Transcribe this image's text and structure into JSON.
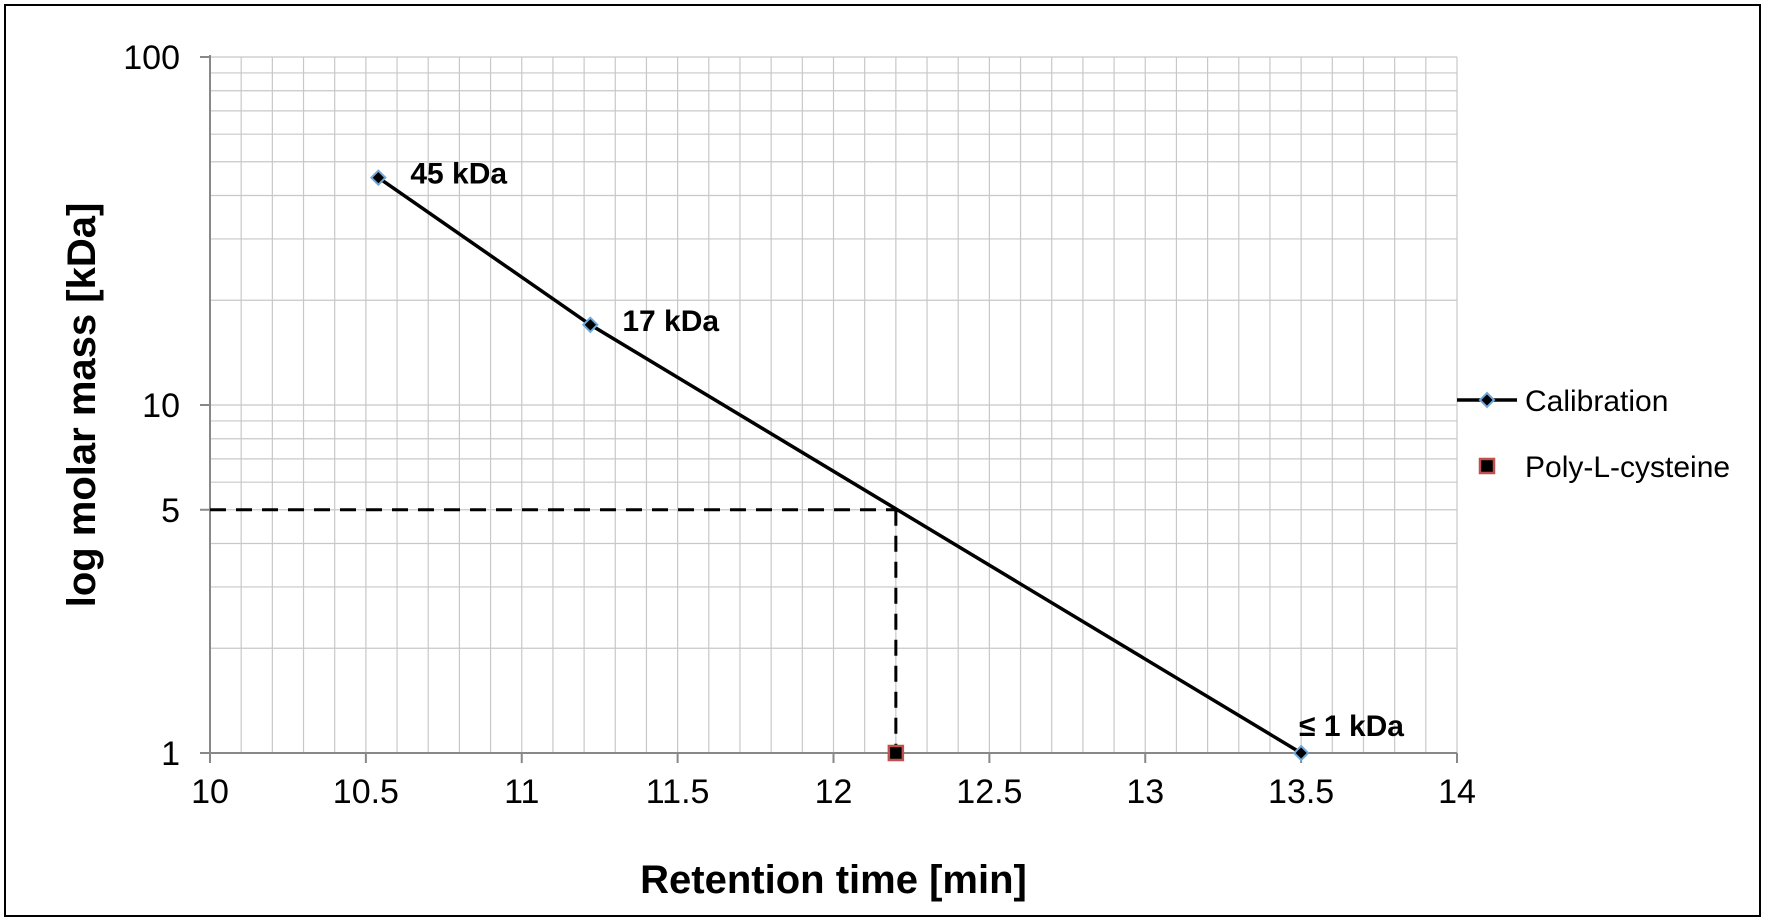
{
  "chart_data": {
    "type": "scatter",
    "xlabel": "Retention time [min]",
    "ylabel": "log molar mass [kDa]",
    "xlim": [
      10,
      14
    ],
    "ylim": [
      1,
      100
    ],
    "yscale": "log",
    "grid": true,
    "x_ticks": [
      10,
      10.5,
      11,
      11.5,
      12,
      12.5,
      13,
      13.5,
      14
    ],
    "x_tick_labels": [
      "10",
      "10.5",
      "11",
      "11.5",
      "12",
      "12.5",
      "13",
      "13.5",
      "14"
    ],
    "y_ticks": [
      1,
      5,
      10,
      100
    ],
    "y_tick_labels": [
      "1",
      "5",
      "10",
      "100"
    ],
    "legend_position": "right",
    "series": [
      {
        "name": "Calibration",
        "color": "#000000",
        "marker_color": "#1f3a93",
        "marker": "diamond",
        "x": [
          10.54,
          11.22,
          13.5
        ],
        "y": [
          45,
          17,
          1
        ]
      },
      {
        "name": "Poly-L-cysteine",
        "color": "#c0504d",
        "marker": "square",
        "x": [
          12.2
        ],
        "y": [
          1
        ]
      }
    ],
    "annotations": [
      {
        "text": "45 kDa",
        "x": 10.54,
        "y": 45
      },
      {
        "text": "17 kDa",
        "x": 11.22,
        "y": 17
      },
      {
        "text": "≤ 1 kDa",
        "x": 13.5,
        "y": 1
      }
    ],
    "reference_lines": {
      "x": 12.2,
      "y": 5
    }
  }
}
